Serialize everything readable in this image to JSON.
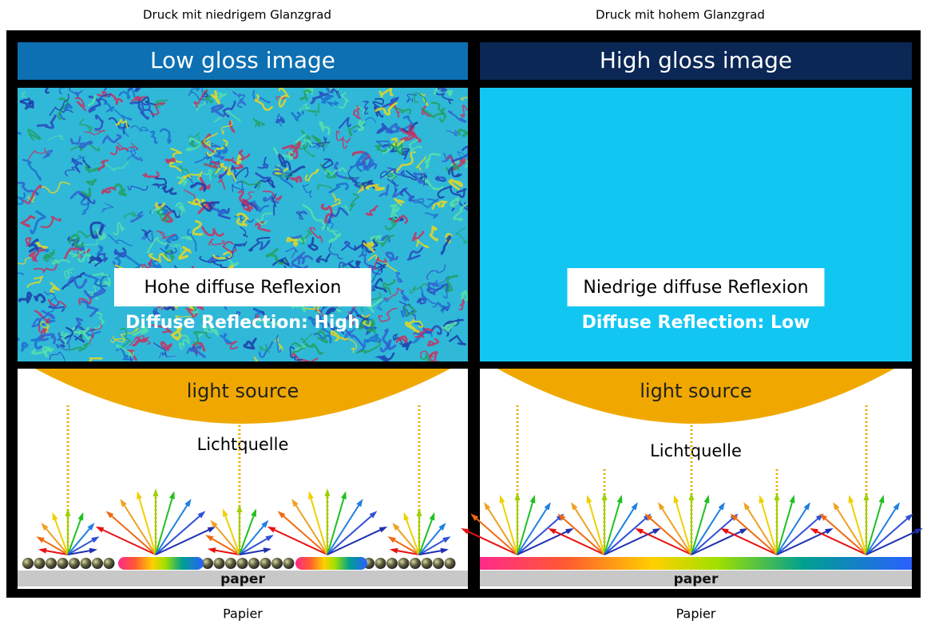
{
  "panels": [
    {
      "caption": "Druck mit niedrigem Glanzgrad",
      "title": "Low gloss image",
      "overlay_label": "Hohe diffuse Reflexion",
      "overlay_caption": "Diffuse Reflection: High",
      "light_source": "light source",
      "light_source_de": "Lichtquelle",
      "paper": "paper",
      "paper_caption": "Papier"
    },
    {
      "caption": "Druck mit hohem Glanzgrad",
      "title": "High gloss image",
      "overlay_label": "Niedrige diffuse Reflexion",
      "overlay_caption": "Diffuse Reflection: Low",
      "light_source": "light source",
      "light_source_de": "Lichtquelle",
      "paper": "paper",
      "paper_caption": "Papier"
    }
  ]
}
